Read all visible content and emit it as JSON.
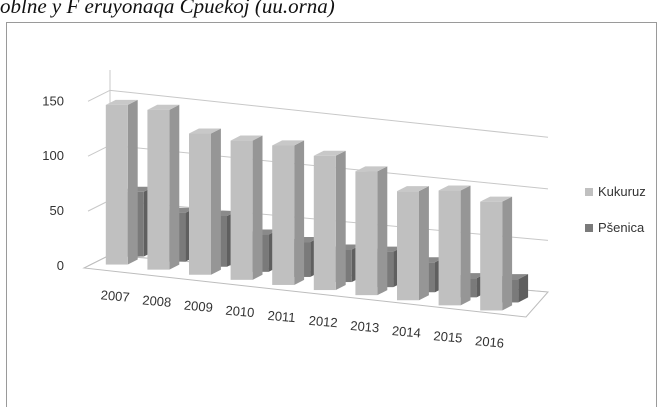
{
  "caption": "oblne y F eruyonaqa Cpuekoj (uu.orna)",
  "chart_data": {
    "type": "bar",
    "categories": [
      "2007",
      "2008",
      "2009",
      "2010",
      "2011",
      "2012",
      "2013",
      "2014",
      "2015",
      "2016"
    ],
    "series": [
      {
        "name": "Kukuruz",
        "values": [
          143,
          144,
          128,
          127,
          128,
          124,
          115,
          102,
          108,
          103
        ],
        "color": "#c0c0c0"
      },
      {
        "name": "Pšenica",
        "values": [
          58,
          44,
          46,
          34,
          32,
          30,
          33,
          28,
          18,
          22
        ],
        "color": "#7a7a7a"
      }
    ],
    "yticks": [
      0,
      50,
      100,
      150
    ],
    "ylim": [
      0,
      150
    ],
    "grid": true,
    "legend": "right",
    "style": "3d-clustered-column"
  }
}
